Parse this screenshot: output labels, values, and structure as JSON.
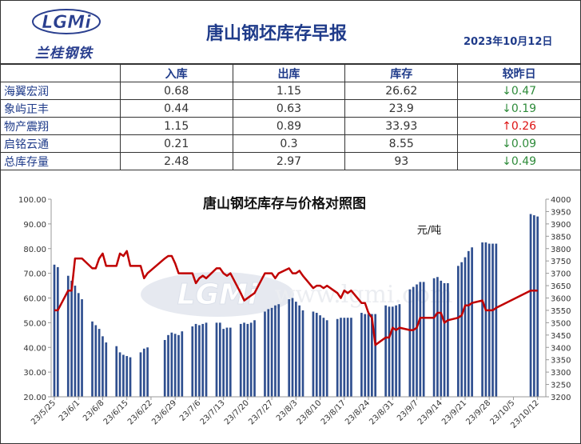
{
  "header": {
    "logo_text": "兰桂钢铁",
    "logo_mark": "LGMi",
    "title": "唐山钢坯库存早报",
    "date": "2023年10月12日"
  },
  "table": {
    "columns": [
      "",
      "入库",
      "出库",
      "库存",
      "较昨日"
    ],
    "rows": [
      {
        "name": "海翼宏润",
        "in": "0.68",
        "out": "1.15",
        "stock": "26.62",
        "change": "↓0.47",
        "dir": "down"
      },
      {
        "name": "象屿正丰",
        "in": "0.44",
        "out": "0.63",
        "stock": "23.9",
        "change": "↓0.19",
        "dir": "down"
      },
      {
        "name": "物产震翔",
        "in": "1.15",
        "out": "0.89",
        "stock": "33.93",
        "change": "↑0.26",
        "dir": "up"
      },
      {
        "name": "启铭云通",
        "in": "0.21",
        "out": "0.3",
        "stock": "8.55",
        "change": "↓0.09",
        "dir": "down"
      },
      {
        "name": "总库存量",
        "in": "2.48",
        "out": "2.97",
        "stock": "93",
        "change": "↓0.49",
        "dir": "down"
      }
    ]
  },
  "chart_data": {
    "type": "bar",
    "title": "唐山钢坯库存与价格对照图",
    "unit_label": "元/吨",
    "watermark": "www.lgmi.com",
    "watermark_logo": "LGMi",
    "bar_color": "#2f4f8f",
    "line_color": "#c00000",
    "left_axis": {
      "min": 20,
      "max": 100,
      "ticks": [
        "20.00",
        "30.00",
        "40.00",
        "50.00",
        "60.00",
        "70.00",
        "80.00",
        "90.00",
        "100.00"
      ]
    },
    "right_axis": {
      "min": 3200,
      "max": 4000,
      "ticks": [
        "3200",
        "3250",
        "3300",
        "3350",
        "3400",
        "3450",
        "3500",
        "3550",
        "3600",
        "3650",
        "3700",
        "3750",
        "3800",
        "3850",
        "3900",
        "3950",
        "4000"
      ]
    },
    "x_tick_labels": [
      "23/5/25",
      "23/6/1",
      "23/6/8",
      "23/6/15",
      "23/6/22",
      "23/6/29",
      "23/7/6",
      "23/7/13",
      "23/7/20",
      "23/7/27",
      "23/8/3",
      "23/8/10",
      "23/8/17",
      "23/8/24",
      "23/8/31",
      "23/9/7",
      "23/9/14",
      "23/9/21",
      "23/9/28",
      "23/10/5",
      "23/10/12"
    ],
    "start_date": "2023-05-25",
    "days": 141,
    "stock_series": [
      [
        0,
        73.5
      ],
      [
        1,
        72.5
      ],
      [
        4,
        69
      ],
      [
        5,
        67
      ],
      [
        6,
        65
      ],
      [
        7,
        62
      ],
      [
        8,
        59.5
      ],
      [
        11,
        50.5
      ],
      [
        12,
        49
      ],
      [
        13,
        47.5
      ],
      [
        14,
        44.5
      ],
      [
        15,
        42
      ],
      [
        18,
        40.5
      ],
      [
        19,
        38
      ],
      [
        20,
        37
      ],
      [
        21,
        36.5
      ],
      [
        22,
        36
      ],
      [
        25,
        38
      ],
      [
        26,
        39.5
      ],
      [
        27,
        40
      ],
      [
        32,
        43
      ],
      [
        33,
        45
      ],
      [
        34,
        46
      ],
      [
        35,
        45.5
      ],
      [
        36,
        45
      ],
      [
        37,
        46.5
      ],
      [
        40,
        48.5
      ],
      [
        41,
        49.5
      ],
      [
        42,
        49
      ],
      [
        43,
        49.5
      ],
      [
        44,
        50
      ],
      [
        47,
        50
      ],
      [
        48,
        50
      ],
      [
        49,
        47.5
      ],
      [
        50,
        48
      ],
      [
        51,
        48
      ],
      [
        54,
        49.5
      ],
      [
        55,
        50
      ],
      [
        56,
        49.5
      ],
      [
        57,
        50
      ],
      [
        58,
        51
      ],
      [
        61,
        54.5
      ],
      [
        62,
        55.5
      ],
      [
        63,
        56
      ],
      [
        64,
        57
      ],
      [
        65,
        57.5
      ],
      [
        68,
        59.5
      ],
      [
        69,
        60
      ],
      [
        70,
        58.5
      ],
      [
        71,
        57
      ],
      [
        72,
        55
      ],
      [
        75,
        54.5
      ],
      [
        76,
        54
      ],
      [
        77,
        53
      ],
      [
        78,
        52
      ],
      [
        79,
        51
      ],
      [
        82,
        51.5
      ],
      [
        83,
        52
      ],
      [
        84,
        52
      ],
      [
        85,
        52
      ],
      [
        86,
        52
      ],
      [
        89,
        54
      ],
      [
        90,
        53.5
      ],
      [
        91,
        53.5
      ],
      [
        92,
        53.5
      ],
      [
        93,
        53.5
      ],
      [
        96,
        57
      ],
      [
        97,
        56.5
      ],
      [
        98,
        56.5
      ],
      [
        99,
        57
      ],
      [
        100,
        57.5
      ],
      [
        103,
        63.5
      ],
      [
        104,
        64.5
      ],
      [
        105,
        65.5
      ],
      [
        106,
        66.5
      ],
      [
        107,
        66.5
      ],
      [
        110,
        68
      ],
      [
        111,
        68.5
      ],
      [
        112,
        67
      ],
      [
        113,
        66
      ],
      [
        114,
        66
      ],
      [
        117,
        73
      ],
      [
        118,
        74.5
      ],
      [
        119,
        76.5
      ],
      [
        120,
        79
      ],
      [
        121,
        80.5
      ],
      [
        124,
        82.5
      ],
      [
        125,
        82.5
      ],
      [
        126,
        82
      ],
      [
        127,
        82
      ],
      [
        128,
        82
      ],
      [
        138,
        94
      ],
      [
        139,
        93.5
      ],
      [
        140,
        93
      ]
    ],
    "price_series": [
      [
        0,
        3550
      ],
      [
        1,
        3550
      ],
      [
        4,
        3630
      ],
      [
        5,
        3630
      ],
      [
        6,
        3760
      ],
      [
        7,
        3760
      ],
      [
        8,
        3760
      ],
      [
        11,
        3720
      ],
      [
        12,
        3720
      ],
      [
        13,
        3760
      ],
      [
        14,
        3780
      ],
      [
        15,
        3730
      ],
      [
        18,
        3730
      ],
      [
        19,
        3780
      ],
      [
        20,
        3770
      ],
      [
        21,
        3790
      ],
      [
        22,
        3730
      ],
      [
        25,
        3730
      ],
      [
        26,
        3680
      ],
      [
        27,
        3700
      ],
      [
        32,
        3760
      ],
      [
        33,
        3770
      ],
      [
        34,
        3770
      ],
      [
        35,
        3740
      ],
      [
        36,
        3700
      ],
      [
        37,
        3700
      ],
      [
        40,
        3700
      ],
      [
        41,
        3660
      ],
      [
        42,
        3680
      ],
      [
        43,
        3690
      ],
      [
        44,
        3680
      ],
      [
        47,
        3720
      ],
      [
        48,
        3720
      ],
      [
        49,
        3700
      ],
      [
        50,
        3690
      ],
      [
        51,
        3700
      ],
      [
        54,
        3620
      ],
      [
        55,
        3590
      ],
      [
        56,
        3600
      ],
      [
        57,
        3610
      ],
      [
        58,
        3620
      ],
      [
        61,
        3700
      ],
      [
        62,
        3700
      ],
      [
        63,
        3700
      ],
      [
        64,
        3680
      ],
      [
        65,
        3700
      ],
      [
        68,
        3720
      ],
      [
        69,
        3700
      ],
      [
        70,
        3700
      ],
      [
        71,
        3710
      ],
      [
        72,
        3690
      ],
      [
        75,
        3640
      ],
      [
        76,
        3650
      ],
      [
        77,
        3650
      ],
      [
        78,
        3640
      ],
      [
        79,
        3650
      ],
      [
        82,
        3620
      ],
      [
        83,
        3600
      ],
      [
        84,
        3630
      ],
      [
        85,
        3620
      ],
      [
        86,
        3630
      ],
      [
        89,
        3580
      ],
      [
        90,
        3580
      ],
      [
        91,
        3540
      ],
      [
        92,
        3520
      ],
      [
        93,
        3410
      ],
      [
        96,
        3440
      ],
      [
        97,
        3440
      ],
      [
        98,
        3480
      ],
      [
        99,
        3470
      ],
      [
        100,
        3480
      ],
      [
        103,
        3470
      ],
      [
        104,
        3470
      ],
      [
        105,
        3480
      ],
      [
        106,
        3520
      ],
      [
        107,
        3520
      ],
      [
        110,
        3520
      ],
      [
        111,
        3540
      ],
      [
        112,
        3540
      ],
      [
        113,
        3500
      ],
      [
        114,
        3510
      ],
      [
        117,
        3520
      ],
      [
        118,
        3530
      ],
      [
        119,
        3570
      ],
      [
        120,
        3570
      ],
      [
        121,
        3580
      ],
      [
        124,
        3590
      ],
      [
        125,
        3550
      ],
      [
        126,
        3550
      ],
      [
        127,
        3550
      ],
      [
        128,
        3560
      ],
      [
        138,
        3630
      ],
      [
        139,
        3630
      ],
      [
        140,
        3630
      ]
    ]
  }
}
